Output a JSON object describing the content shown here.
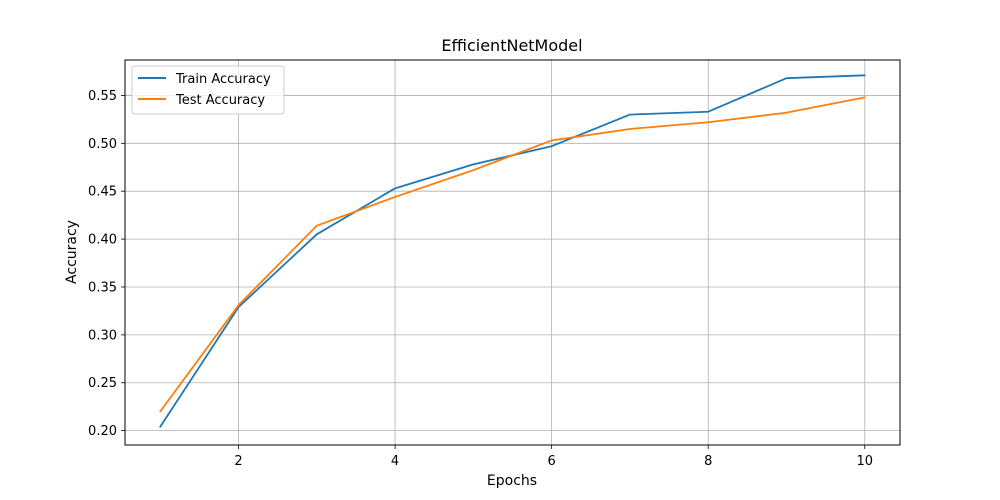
{
  "chart_data": {
    "type": "line",
    "title": "EfficientNetModel",
    "xlabel": "Epochs",
    "ylabel": "Accuracy",
    "xlim": [
      0.55,
      10.45
    ],
    "ylim": [
      0.185,
      0.587
    ],
    "xticks": [
      2,
      4,
      6,
      8,
      10
    ],
    "yticks": [
      0.2,
      0.25,
      0.3,
      0.35,
      0.4,
      0.45,
      0.5,
      0.55
    ],
    "grid": true,
    "legend_position": "top-left",
    "x": [
      1,
      2,
      3,
      4,
      5,
      6,
      7,
      8,
      9,
      10
    ],
    "series": [
      {
        "name": "Train Accuracy",
        "color": "#1f77b4",
        "values": [
          0.204,
          0.329,
          0.405,
          0.453,
          0.478,
          0.497,
          0.53,
          0.533,
          0.568,
          0.571
        ]
      },
      {
        "name": "Test Accuracy",
        "color": "#ff7f0e",
        "values": [
          0.22,
          0.331,
          0.414,
          0.444,
          0.472,
          0.503,
          0.515,
          0.522,
          0.532,
          0.548
        ]
      }
    ]
  }
}
